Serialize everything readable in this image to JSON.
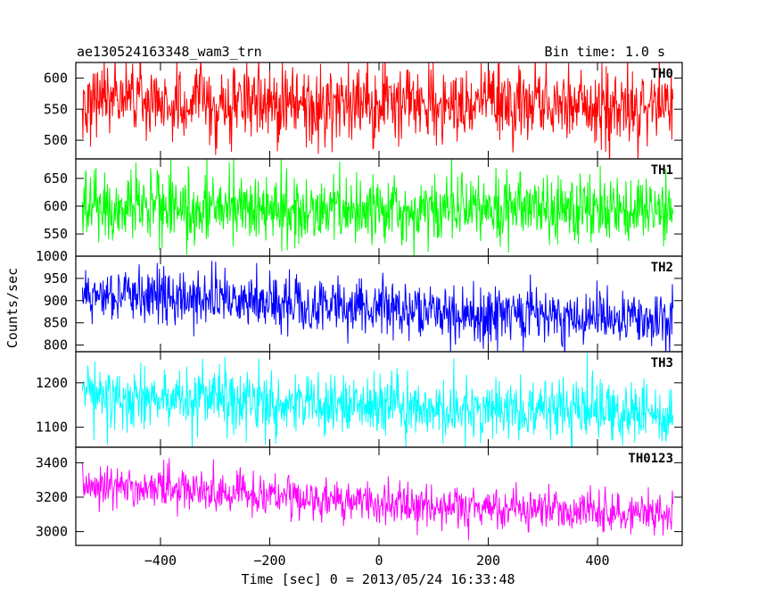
{
  "header": {
    "title": "ae130524163348_wam3_trn",
    "bin_time": "Bin time: 1.0 s"
  },
  "axes": {
    "ylabel": "Counts/sec",
    "xlabel": "Time [sec] 0 = 2013/05/24 16:33:48"
  },
  "chart_data": {
    "type": "line",
    "title": "ae130524163348_wam3_trn",
    "xlabel": "Time [sec] 0 = 2013/05/24 16:33:48",
    "ylabel": "Counts/sec",
    "xlim": [
      -555,
      555
    ],
    "x_ticks": [
      -400,
      -200,
      0,
      200,
      400
    ],
    "x_range_data": [
      -543,
      538
    ],
    "bin_time_s": 1.0,
    "panels": [
      {
        "name": "TH0",
        "color": "#ff0000",
        "ylim": [
          470,
          625
        ],
        "y_ticks": [
          500,
          550,
          600
        ],
        "trend": [
          [
            -543,
            563
          ],
          [
            -300,
            560
          ],
          [
            0,
            557
          ],
          [
            538,
            558
          ]
        ],
        "noise_sd": 30
      },
      {
        "name": "TH1",
        "color": "#00ff00",
        "ylim": [
          510,
          685
        ],
        "y_ticks": [
          550,
          600,
          650
        ],
        "trend": [
          [
            -543,
            601
          ],
          [
            -300,
            597
          ],
          [
            0,
            594
          ],
          [
            538,
            594
          ]
        ],
        "noise_sd": 30
      },
      {
        "name": "TH2",
        "color": "#0000ff",
        "ylim": [
          785,
          1000
        ],
        "y_ticks": [
          800,
          850,
          900,
          950,
          1000
        ],
        "trend": [
          [
            -543,
            910
          ],
          [
            -300,
            903
          ],
          [
            0,
            878
          ],
          [
            538,
            855
          ]
        ],
        "noise_sd": 32
      },
      {
        "name": "TH3",
        "color": "#00ffff",
        "ylim": [
          1055,
          1270
        ],
        "y_ticks": [
          1100,
          1200
        ],
        "trend": [
          [
            -543,
            1172
          ],
          [
            -300,
            1162
          ],
          [
            0,
            1150
          ],
          [
            538,
            1130
          ]
        ],
        "noise_sd": 34
      },
      {
        "name": "TH0123",
        "color": "#ff00ff",
        "ylim": [
          2920,
          3490
        ],
        "y_ticks": [
          3000,
          3200,
          3400
        ],
        "trend": [
          [
            -543,
            3270
          ],
          [
            -300,
            3235
          ],
          [
            0,
            3160
          ],
          [
            538,
            3100
          ]
        ],
        "noise_sd": 58
      }
    ]
  }
}
